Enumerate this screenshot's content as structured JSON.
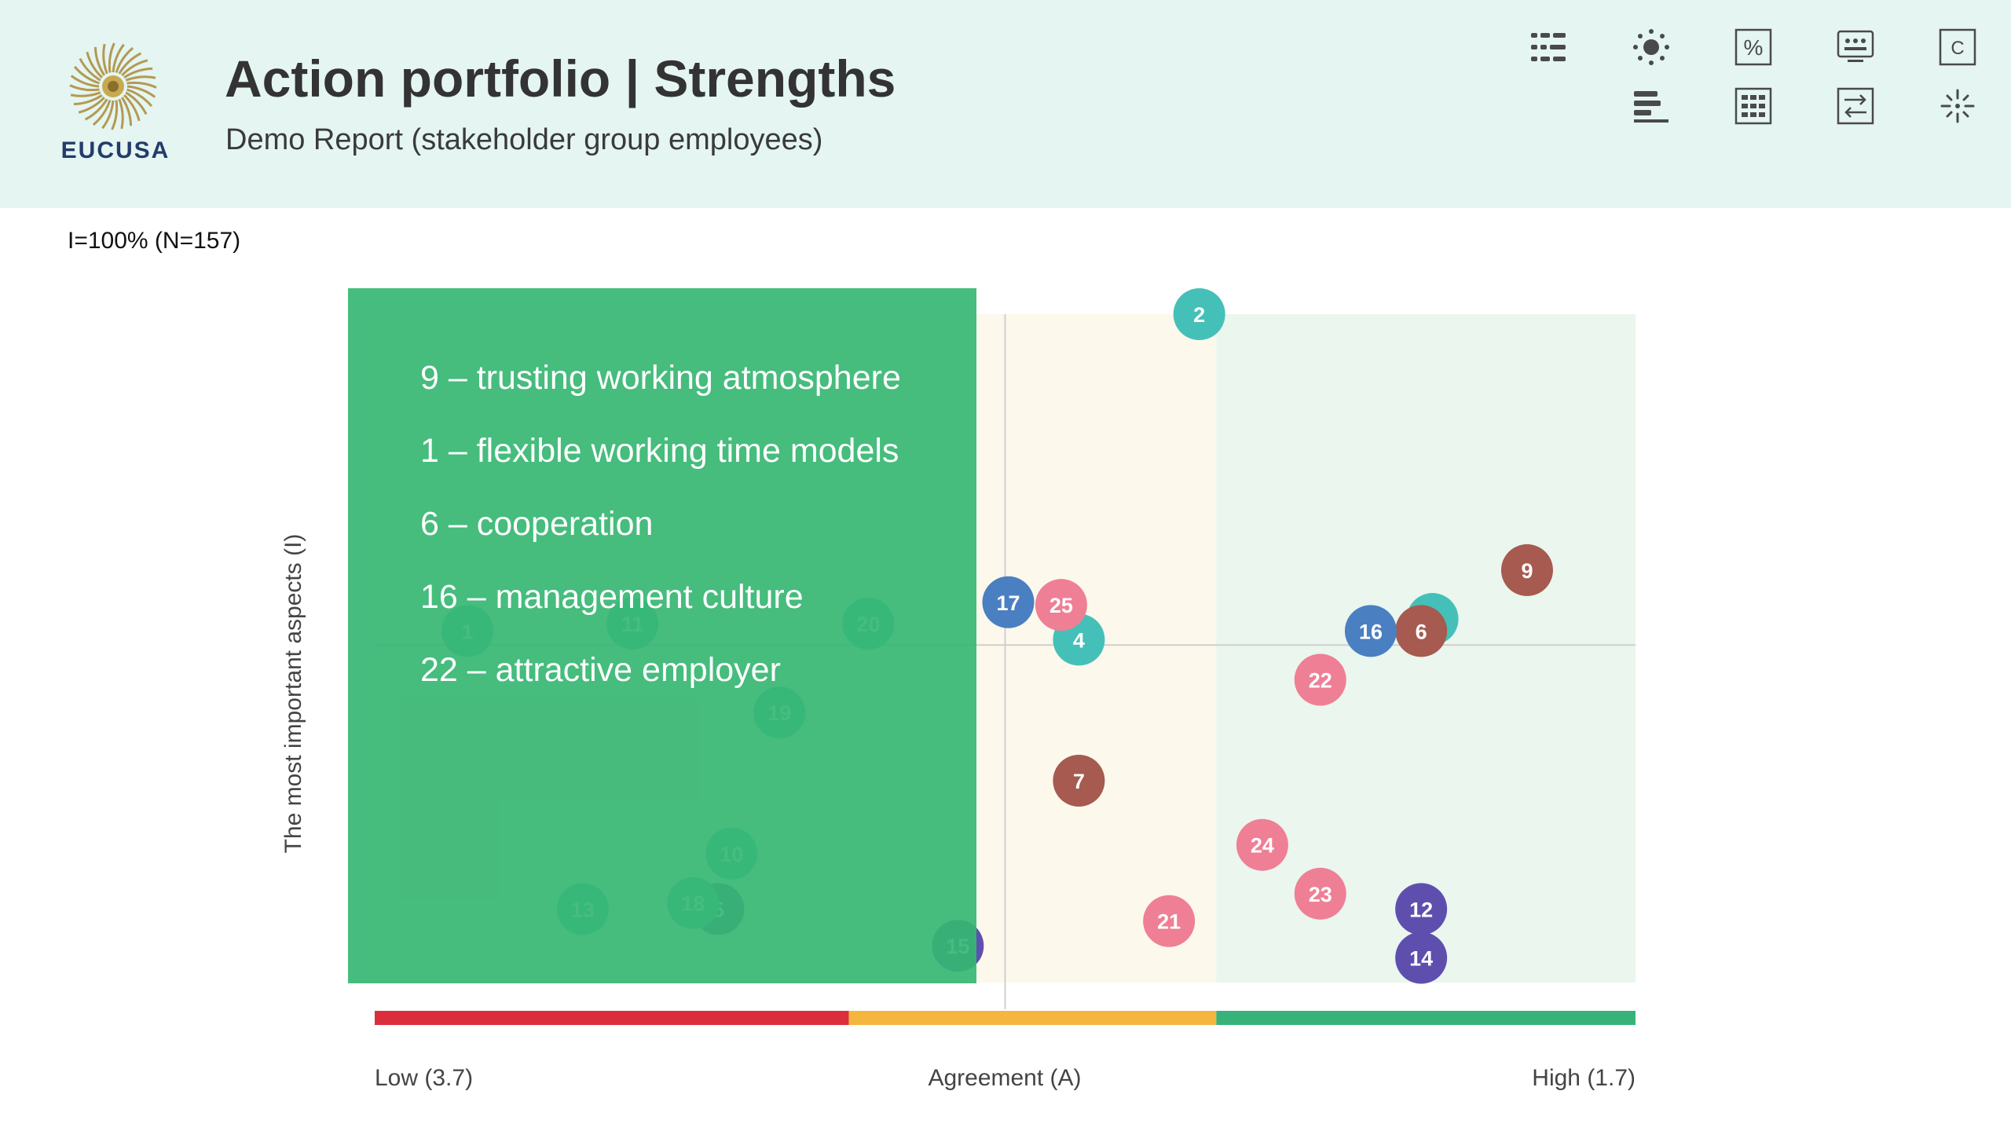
{
  "header": {
    "brand": "EUCUSA",
    "title": "Action portfolio | Strengths",
    "subtitle": "Demo Report (stakeholder group employees)"
  },
  "toolbar": {
    "icons": [
      "list-icon",
      "brightness-icon",
      "percent-icon",
      "display-icon",
      "c-icon",
      "bar-sort-icon",
      "grid-icon",
      "swap-icon",
      "spark-icon"
    ]
  },
  "sample_info": "I=100% (N=157)",
  "colors": {
    "accent_green": "#36b773",
    "zone_red": "#dc2d3c",
    "zone_orange": "#f4b63e",
    "zone_green": "#37b37a",
    "bubble_teal": "#45c0b8",
    "bubble_blue": "#4a7fc2",
    "bubble_pink": "#ef7f95",
    "bubble_brown": "#a65a50",
    "bubble_purple": "#5e4fae"
  },
  "highlight_list": [
    "9 – trusting working atmosphere",
    "1 – flexible working time models",
    "6 – cooperation",
    "16 – management culture",
    "22 – attractive employer"
  ],
  "chart_data": {
    "type": "scatter",
    "title": "Action portfolio | Strengths",
    "xlabel": "Agreement (A)",
    "ylabel": "The most important aspects (I)",
    "x_tick_low": "Low (3.7)",
    "x_tick_high": "High (1.7)",
    "xlim": [
      3.7,
      1.7
    ],
    "ylim": [
      0,
      100
    ],
    "zones": [
      {
        "name": "low",
        "from": 3.7,
        "to": 2.948,
        "color": "#dc2d3c"
      },
      {
        "name": "medium",
        "from": 2.948,
        "to": 2.365,
        "color": "#f4b63e"
      },
      {
        "name": "high",
        "from": 2.365,
        "to": 1.7,
        "color": "#37b37a"
      }
    ],
    "reference": {
      "x": 2.7,
      "y": 50.5
    },
    "points": [
      {
        "label": "1",
        "x": 3.553,
        "y": 52.6,
        "color": "teal"
      },
      {
        "label": "2",
        "x": 2.392,
        "y": 100,
        "color": "teal"
      },
      {
        "label": "3",
        "x": 2.022,
        "y": 54.4,
        "color": "teal"
      },
      {
        "label": "4",
        "x": 2.583,
        "y": 51.3,
        "color": "teal"
      },
      {
        "label": "5",
        "x": 3.155,
        "y": 11.0,
        "color": "purple"
      },
      {
        "label": "6",
        "x": 2.04,
        "y": 52.6,
        "color": "brown"
      },
      {
        "label": "7",
        "x": 2.583,
        "y": 30.2,
        "color": "brown"
      },
      {
        "label": "9",
        "x": 1.872,
        "y": 61.7,
        "color": "brown"
      },
      {
        "label": "10",
        "x": 3.134,
        "y": 19.3,
        "color": "teal"
      },
      {
        "label": "11",
        "x": 3.291,
        "y": 53.7,
        "color": "teal"
      },
      {
        "label": "12",
        "x": 2.04,
        "y": 11.0,
        "color": "purple"
      },
      {
        "label": "13",
        "x": 3.37,
        "y": 11.0,
        "color": "teal"
      },
      {
        "label": "14",
        "x": 2.04,
        "y": 3.7,
        "color": "purple"
      },
      {
        "label": "15",
        "x": 2.775,
        "y": 5.5,
        "color": "purple"
      },
      {
        "label": "16",
        "x": 2.12,
        "y": 52.6,
        "color": "blue"
      },
      {
        "label": "17",
        "x": 2.695,
        "y": 56.9,
        "color": "blue"
      },
      {
        "label": "18",
        "x": 3.195,
        "y": 11.9,
        "color": "teal"
      },
      {
        "label": "19",
        "x": 3.058,
        "y": 40.4,
        "color": "teal"
      },
      {
        "label": "20",
        "x": 2.917,
        "y": 53.7,
        "color": "teal"
      },
      {
        "label": "21",
        "x": 2.44,
        "y": 9.2,
        "color": "pink"
      },
      {
        "label": "22",
        "x": 2.2,
        "y": 45.3,
        "color": "pink"
      },
      {
        "label": "23",
        "x": 2.2,
        "y": 13.3,
        "color": "pink"
      },
      {
        "label": "24",
        "x": 2.292,
        "y": 20.6,
        "color": "pink"
      },
      {
        "label": "25",
        "x": 2.611,
        "y": 56.5,
        "color": "pink"
      }
    ]
  }
}
